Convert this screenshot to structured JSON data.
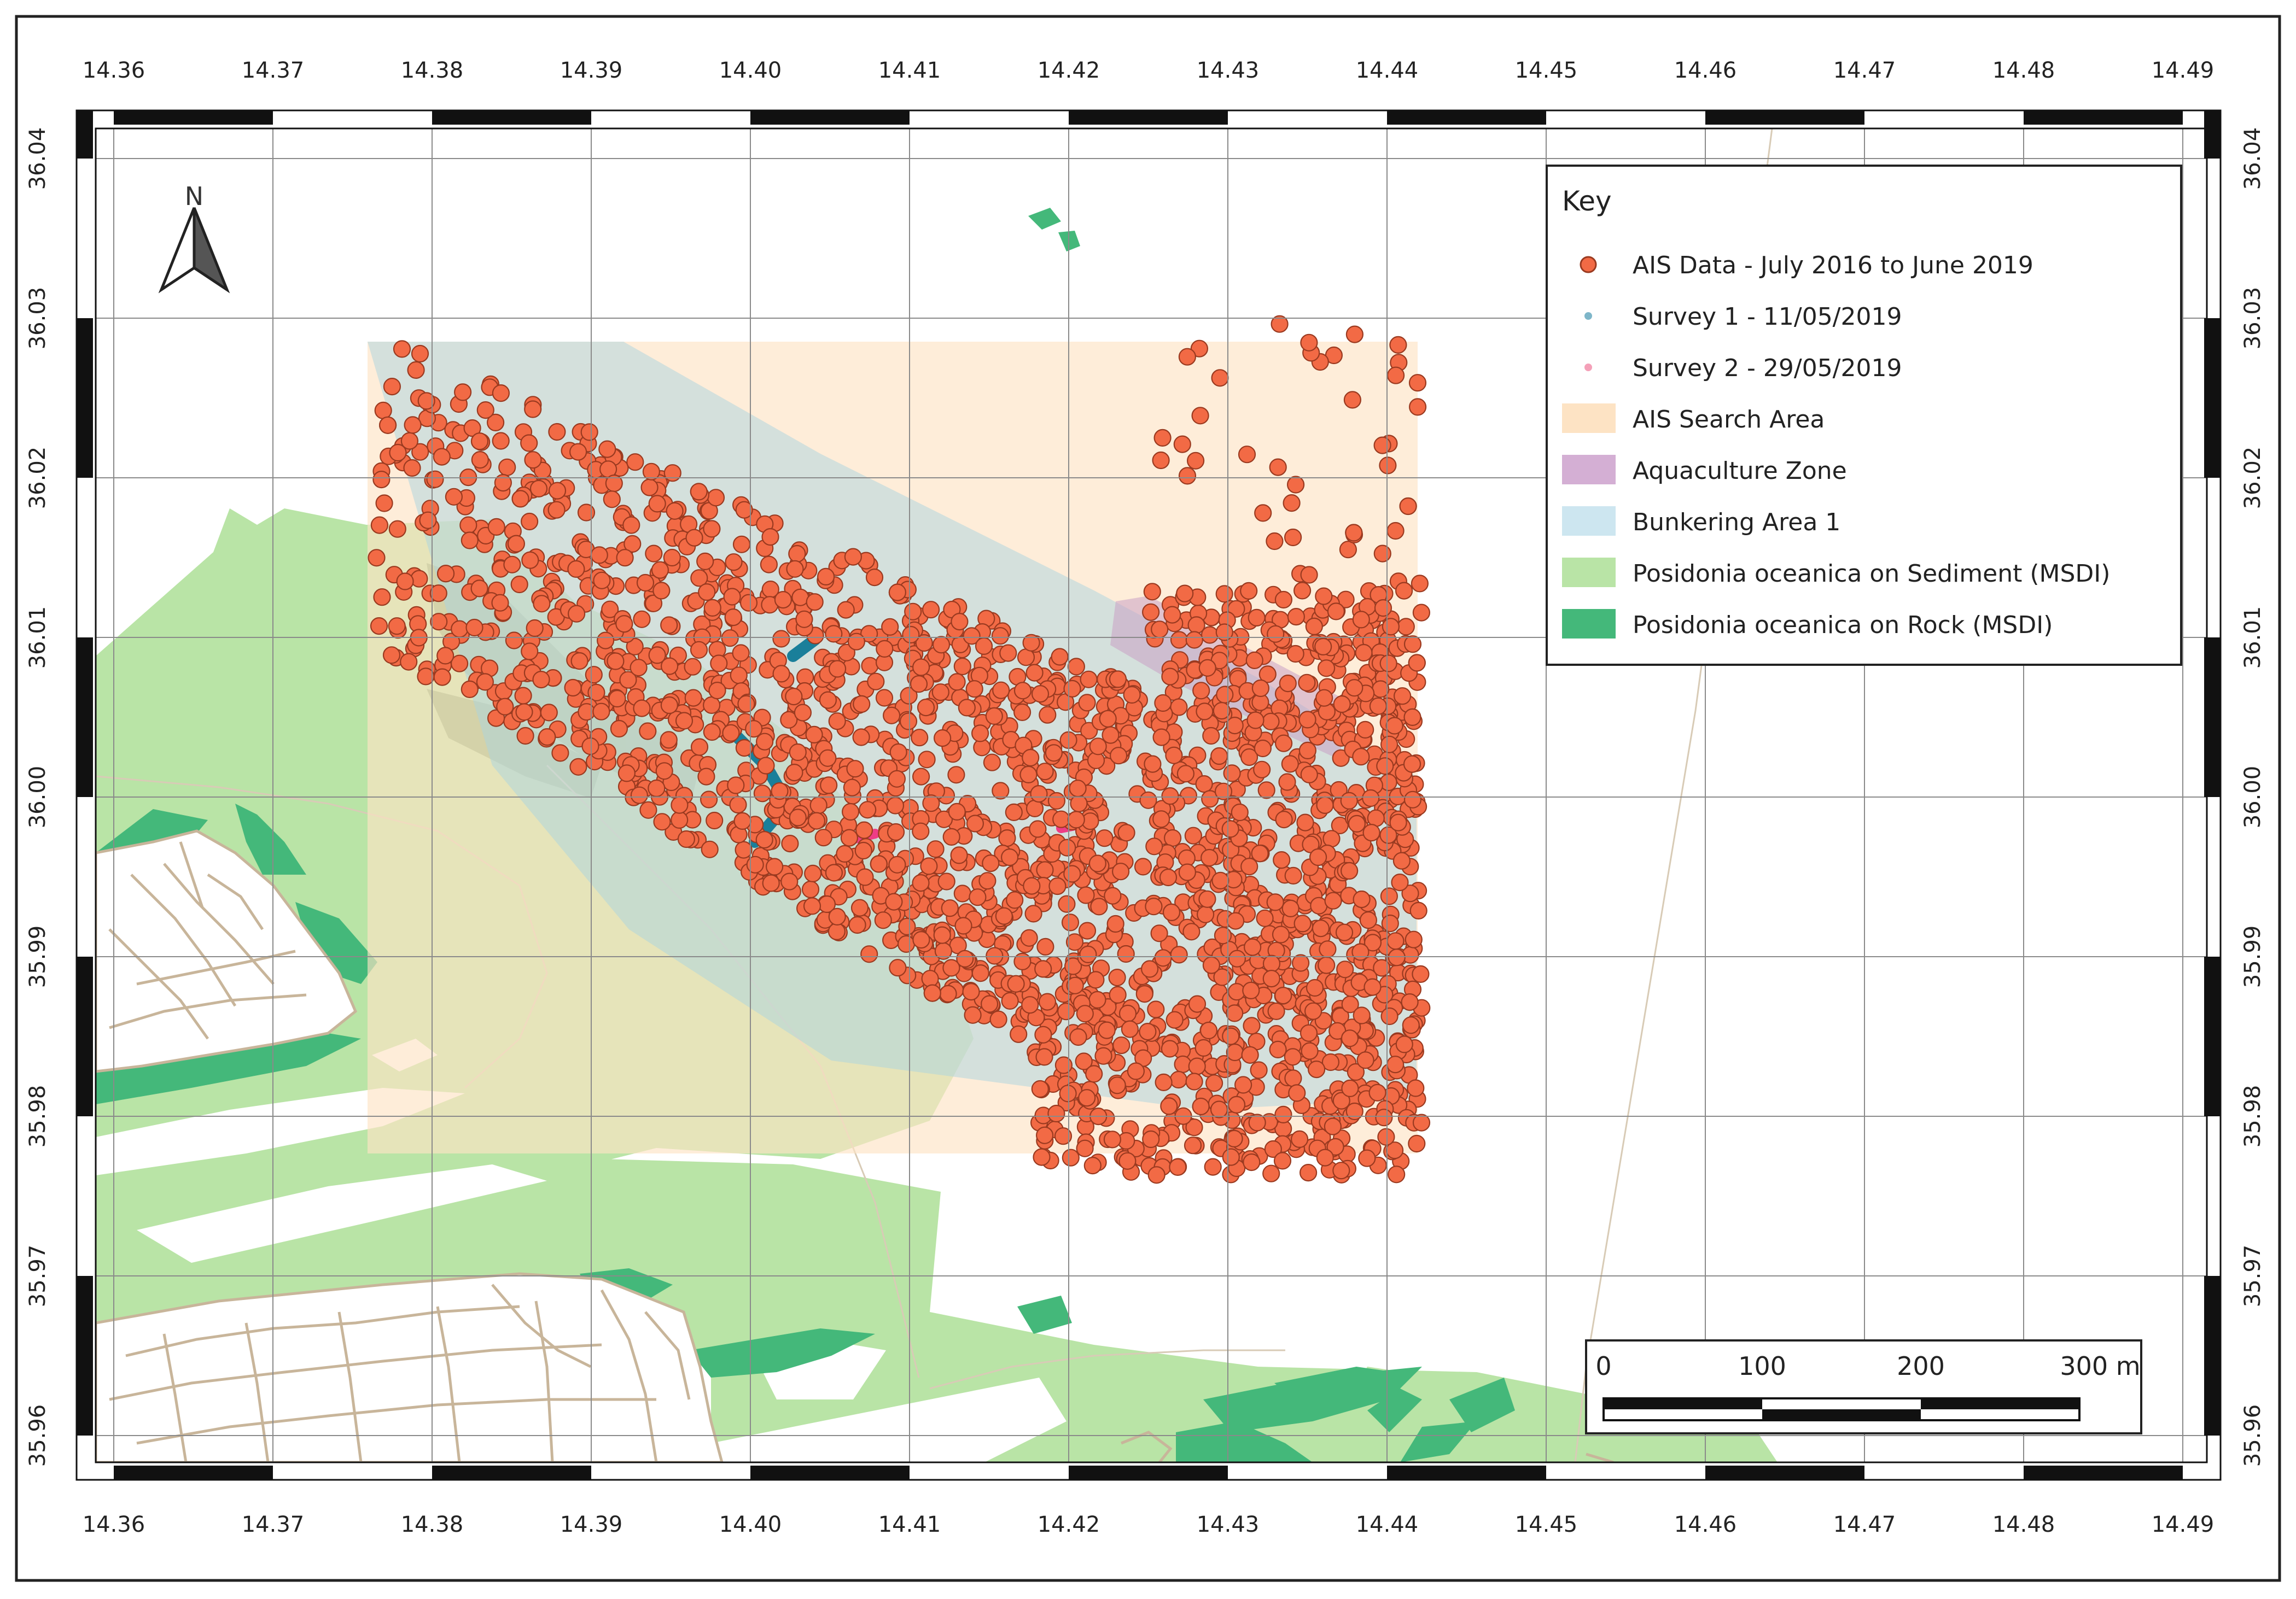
{
  "map": {
    "lon_ticks": [
      "14.36",
      "14.37",
      "14.38",
      "14.39",
      "14.40",
      "14.41",
      "14.42",
      "14.43",
      "14.44",
      "14.45",
      "14.46",
      "14.47",
      "14.48",
      "14.49"
    ],
    "lat_ticks": [
      "36.04",
      "36.03",
      "36.02",
      "36.01",
      "36.00",
      "35.99",
      "35.98",
      "35.97",
      "35.96"
    ],
    "north_label": "N"
  },
  "legend": {
    "title": "Key",
    "items": [
      {
        "label": "AIS Data - July 2016 to June 2019",
        "symbol": "circle",
        "color": "#f26a45"
      },
      {
        "label": "Survey 1 - 11/05/2019",
        "symbol": "dot",
        "color": "#7eb6c9"
      },
      {
        "label": "Survey 2 - 29/05/2019",
        "symbol": "dot",
        "color": "#f4a0b8"
      },
      {
        "label": "AIS Search Area",
        "symbol": "rect",
        "color": "#fde3c4"
      },
      {
        "label": "Aquaculture Zone",
        "symbol": "rect",
        "color": "#d4afd4"
      },
      {
        "label": "Bunkering Area 1",
        "symbol": "rect",
        "color": "#cde6f0"
      },
      {
        "label": "Posidonia oceanica on Sediment (MSDI)",
        "symbol": "rect",
        "color": "#b9e4a6"
      },
      {
        "label": "Posidonia oceanica on Rock (MSDI)",
        "symbol": "rect",
        "color": "#44b87a"
      }
    ]
  },
  "scale_bar": {
    "labels": [
      "0",
      "100",
      "200",
      "300 m"
    ]
  },
  "colors": {
    "ais_fill": "#f26a45",
    "ais_stroke": "#9a3a20",
    "survey1": "#1a7f9a",
    "survey2": "#ee3d86",
    "search_area": "#fde3c4",
    "bunkering": "#a9d4e0",
    "aquaculture": "#c9a0c4",
    "sediment": "#b9e4a6",
    "rock": "#44b87a",
    "roads": "#c8b59a"
  }
}
